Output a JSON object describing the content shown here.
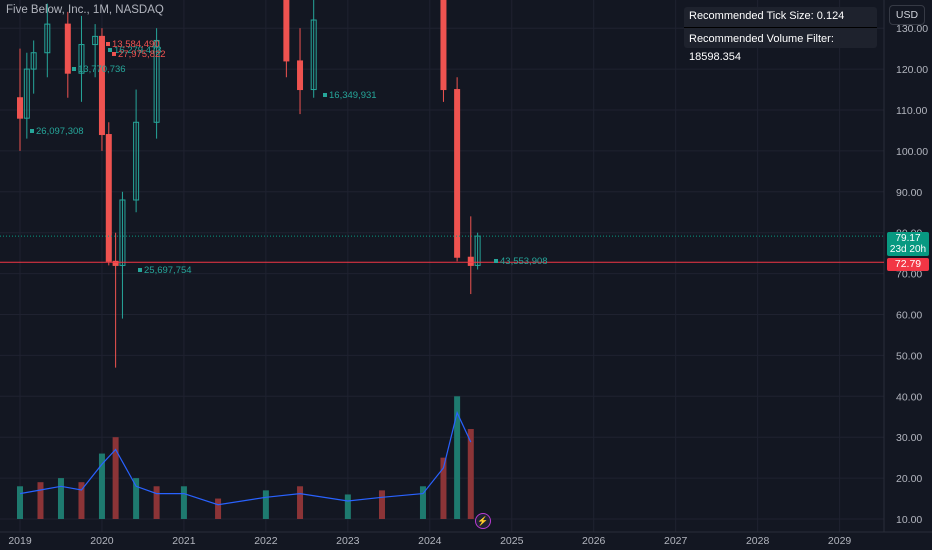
{
  "header": {
    "title": "Five Below, Inc., 1M, NASDAQ"
  },
  "info_box": {
    "tick_size": "Recommended Tick Size: 0.124",
    "volume_filter": "Recommended Volume Filter: 18598.354"
  },
  "axis": {
    "currency": "USD"
  },
  "price_tags": {
    "current_price": "79.17",
    "countdown": "23d 20h",
    "level_price": "72.79"
  },
  "colors": {
    "up": "#26a69a",
    "down": "#ef5350",
    "vol_up": "#1e7a6f",
    "vol_down": "#8c3437",
    "ma_line": "#2962ff",
    "level_line": "#f23645",
    "dotted": "#089981",
    "background": "#131722"
  },
  "chart_data": {
    "type": "candlestick",
    "symbol": "Five Below, Inc.",
    "interval": "1M",
    "exchange": "NASDAQ",
    "y_axis": {
      "ticks": [
        "10.00",
        "20.00",
        "30.00",
        "40.00",
        "50.00",
        "60.00",
        "70.00",
        "80.00",
        "90.00",
        "100.00",
        "110.00",
        "120.00",
        "130.00"
      ]
    },
    "x_axis": {
      "ticks": [
        "2019",
        "2020",
        "2021",
        "2022",
        "2023",
        "2024",
        "2025",
        "2026",
        "2027",
        "2028",
        "2029"
      ]
    },
    "current_price": 79.17,
    "horizontal_level": 72.79,
    "candles_approx": [
      {
        "date": "2019-01",
        "open": 113,
        "high": 125,
        "low": 100,
        "close": 108
      },
      {
        "date": "2019-02",
        "open": 108,
        "high": 124,
        "low": 103,
        "close": 120
      },
      {
        "date": "2019-03",
        "open": 120,
        "high": 127,
        "low": 114,
        "close": 124
      },
      {
        "date": "2019-05",
        "open": 124,
        "high": 136,
        "low": 118,
        "close": 131
      },
      {
        "date": "2019-08",
        "open": 131,
        "high": 134,
        "low": 113,
        "close": 119
      },
      {
        "date": "2019-10",
        "open": 119,
        "high": 133,
        "low": 112,
        "close": 126
      },
      {
        "date": "2019-12",
        "open": 126,
        "high": 131,
        "low": 118,
        "close": 128
      },
      {
        "date": "2020-01",
        "open": 128,
        "high": 130,
        "low": 100,
        "close": 104
      },
      {
        "date": "2020-02",
        "open": 104,
        "high": 107,
        "low": 72,
        "close": 73
      },
      {
        "date": "2020-03",
        "open": 73,
        "high": 80,
        "low": 47,
        "close": 72
      },
      {
        "date": "2020-04",
        "open": 72,
        "high": 90,
        "low": 59,
        "close": 88
      },
      {
        "date": "2020-06",
        "open": 88,
        "high": 115,
        "low": 85,
        "close": 107
      },
      {
        "date": "2020-09",
        "open": 107,
        "high": 130,
        "low": 103,
        "close": 127
      },
      {
        "date": "2022-04",
        "open": 150,
        "high": 152,
        "low": 118,
        "close": 122
      },
      {
        "date": "2022-06",
        "open": 122,
        "high": 130,
        "low": 109,
        "close": 115
      },
      {
        "date": "2022-08",
        "open": 115,
        "high": 140,
        "low": 113,
        "close": 132
      },
      {
        "date": "2024-03",
        "open": 150,
        "high": 155,
        "low": 112,
        "close": 115
      },
      {
        "date": "2024-05",
        "open": 115,
        "high": 118,
        "low": 73,
        "close": 74
      },
      {
        "date": "2024-07",
        "open": 74,
        "high": 84,
        "low": 65,
        "close": 72
      },
      {
        "date": "2024-08",
        "open": 72,
        "high": 80,
        "low": 71,
        "close": 79.17
      }
    ],
    "volume_approx": [
      {
        "date": "2019-01",
        "value": 18
      },
      {
        "date": "2019-04",
        "value": 19
      },
      {
        "date": "2019-07",
        "value": 20
      },
      {
        "date": "2019-10",
        "value": 19
      },
      {
        "date": "2020-01",
        "value": 26
      },
      {
        "date": "2020-03",
        "value": 30
      },
      {
        "date": "2020-06",
        "value": 20
      },
      {
        "date": "2020-09",
        "value": 18
      },
      {
        "date": "2021-01",
        "value": 18
      },
      {
        "date": "2021-06",
        "value": 15
      },
      {
        "date": "2022-01",
        "value": 17
      },
      {
        "date": "2022-06",
        "value": 18
      },
      {
        "date": "2023-01",
        "value": 16
      },
      {
        "date": "2023-06",
        "value": 17
      },
      {
        "date": "2023-12",
        "value": 18
      },
      {
        "date": "2024-03",
        "value": 25
      },
      {
        "date": "2024-05",
        "value": 40
      },
      {
        "date": "2024-07",
        "value": 32
      }
    ],
    "volume_labels": [
      {
        "text": "26,097,308",
        "color": "up"
      },
      {
        "text": "13,770,736",
        "color": "up"
      },
      {
        "text": "16,279,473",
        "color": "up"
      },
      {
        "text": "13,584,490",
        "color": "down"
      },
      {
        "text": "27,975,822",
        "color": "down"
      },
      {
        "text": "25,697,754",
        "color": "up"
      },
      {
        "text": "16,349,931",
        "color": "up"
      },
      {
        "text": "43,553,908",
        "color": "up"
      }
    ]
  }
}
